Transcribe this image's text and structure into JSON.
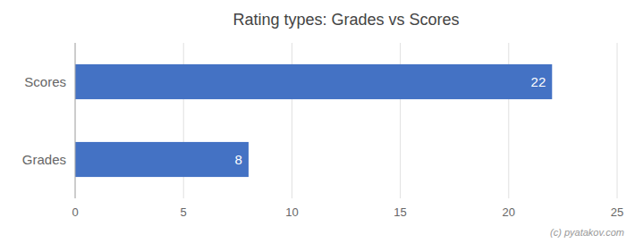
{
  "chart_data": {
    "type": "bar",
    "orientation": "horizontal",
    "title": "Rating types: Grades vs Scores",
    "categories": [
      "Grades",
      "Scores"
    ],
    "values": [
      8,
      22
    ],
    "color": "#4472c4",
    "xlim": [
      0,
      25
    ],
    "xticks": [
      0,
      5,
      10,
      15,
      20,
      25
    ],
    "grid": true,
    "data_labels": true,
    "annotations": [
      "(c) pyatakov.com"
    ]
  }
}
